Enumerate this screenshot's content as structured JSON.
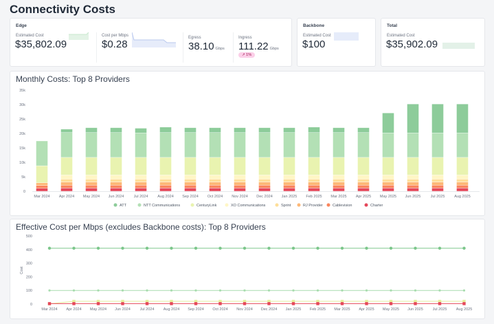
{
  "page": {
    "title": "Connectivity Costs"
  },
  "edge": {
    "title": "Edge",
    "estimated_cost_label": "Estimated Cost",
    "estimated_cost": "$35,802.09",
    "cost_per_mbps_label": "Cost per Mbps",
    "cost_per_mbps": "$0.28",
    "egress_label": "Egress",
    "egress": "38.10",
    "egress_unit": "Gbps",
    "ingress_label": "Ingress",
    "ingress": "111.22",
    "ingress_unit": "Gbps",
    "ingress_change": "↗ 1%"
  },
  "backbone": {
    "title": "Backbone",
    "estimated_cost_label": "Estimated Cost",
    "estimated_cost": "$100"
  },
  "total": {
    "title": "Total",
    "estimated_cost_label": "Estimated Cost",
    "estimated_cost": "$35,902.09"
  },
  "colors": {
    "ATT": "#8dcc9a",
    "NTT Communications": "#b3e0b5",
    "CenturyLink": "#e9f3b0",
    "XO Communications": "#fff6c6",
    "Sprint": "#fedf9a",
    "RJ Provider": "#fdb877",
    "Cablevision": "#f9855c",
    "Charter": "#e5475a",
    "badge": "#fbcfe8"
  },
  "chart_data": [
    {
      "type": "bar",
      "stacked": true,
      "title": "Monthly Costs: Top 8 Providers",
      "ylim": [
        0,
        35000
      ],
      "yticks": [
        "0",
        "5k",
        "10k",
        "15k",
        "20k",
        "25k",
        "30k",
        "35k"
      ],
      "legend": "bottom",
      "categories": [
        "Mar 2024",
        "Apr 2024",
        "May 2024",
        "Jun 2024",
        "Jul 2024",
        "Aug 2024",
        "Sep 2024",
        "Oct 2024",
        "Nov 2024",
        "Dec 2024",
        "Jan 2025",
        "Feb 2025",
        "Mar 2025",
        "Apr 2025",
        "May 2025",
        "Jun 2025",
        "Jul 2025",
        "Aug 2025"
      ],
      "series": [
        {
          "name": "Charter",
          "values": [
            1000,
            1100,
            1100,
            1100,
            1100,
            1100,
            1100,
            1100,
            1100,
            1100,
            1100,
            1100,
            1100,
            1100,
            1100,
            1100,
            1100,
            1100
          ]
        },
        {
          "name": "Cablevision",
          "values": [
            1000,
            1000,
            1000,
            1000,
            1000,
            1000,
            1000,
            1000,
            1000,
            1000,
            1000,
            1000,
            1000,
            1000,
            1000,
            1000,
            1000,
            1000
          ]
        },
        {
          "name": "RJ Provider",
          "values": [
            900,
            1100,
            1100,
            1100,
            1100,
            1100,
            1100,
            1100,
            1100,
            1100,
            1100,
            1100,
            1100,
            1100,
            1100,
            1100,
            1100,
            1100
          ]
        },
        {
          "name": "Sprint",
          "values": [
            0,
            1000,
            1000,
            1000,
            1000,
            1000,
            1000,
            1000,
            1000,
            1000,
            1000,
            1000,
            1000,
            1000,
            1000,
            1000,
            1000,
            1000
          ]
        },
        {
          "name": "XO Communications",
          "values": [
            0,
            1400,
            1400,
            1400,
            1400,
            1400,
            1400,
            1400,
            1400,
            1400,
            1400,
            1400,
            1400,
            1400,
            1400,
            1400,
            1400,
            1400
          ]
        },
        {
          "name": "CenturyLink",
          "values": [
            5900,
            6100,
            6100,
            6100,
            6100,
            6100,
            6100,
            6100,
            6100,
            6100,
            6100,
            6100,
            6100,
            6100,
            6100,
            6100,
            6100,
            6100
          ]
        },
        {
          "name": "NTT Communications",
          "values": [
            8600,
            8600,
            8600,
            8600,
            8500,
            8600,
            8600,
            8600,
            8600,
            8600,
            8600,
            8600,
            8600,
            8600,
            8500,
            8500,
            8500,
            8500
          ]
        },
        {
          "name": "ATT",
          "values": [
            0,
            1200,
            1700,
            1700,
            1600,
            1900,
            1700,
            1700,
            1700,
            1700,
            1700,
            1900,
            1700,
            1700,
            6900,
            10000,
            10000,
            10000
          ]
        }
      ]
    },
    {
      "type": "line",
      "title": "Effective Cost per Mbps (excludes Backbone costs): Top 8 Providers",
      "ylabel": "Cost",
      "ylim": [
        0,
        500
      ],
      "yticks": [
        "0",
        "100",
        "200",
        "300",
        "400",
        "500"
      ],
      "categories": [
        "Mar 2024",
        "Apr 2024",
        "May 2024",
        "Jun 2024",
        "Jul 2024",
        "Aug 2024",
        "Sep 2024",
        "Oct 2024",
        "Nov 2024",
        "Dec 2024",
        "Jan 2025",
        "Feb 2025",
        "Mar 2025",
        "Apr 2025",
        "May 2025",
        "Jun 2025",
        "Jul 2025",
        "Aug 2025"
      ],
      "series": [
        {
          "name": "ATT",
          "values": [
            410,
            410,
            410,
            410,
            410,
            410,
            410,
            410,
            410,
            410,
            410,
            410,
            410,
            410,
            410,
            410,
            410,
            410
          ]
        },
        {
          "name": "NTT Communications",
          "values": [
            100,
            100,
            100,
            100,
            100,
            100,
            100,
            100,
            100,
            100,
            100,
            100,
            100,
            100,
            100,
            100,
            100,
            100
          ]
        },
        {
          "name": "CenturyLink",
          "values": [
            2,
            20,
            20,
            20,
            20,
            20,
            20,
            20,
            20,
            20,
            20,
            20,
            20,
            20,
            20,
            20,
            20,
            20
          ]
        },
        {
          "name": "Charter",
          "values": [
            3,
            3,
            3,
            3,
            3,
            3,
            3,
            3,
            3,
            3,
            3,
            3,
            3,
            3,
            3,
            3,
            3,
            3
          ]
        }
      ]
    }
  ]
}
